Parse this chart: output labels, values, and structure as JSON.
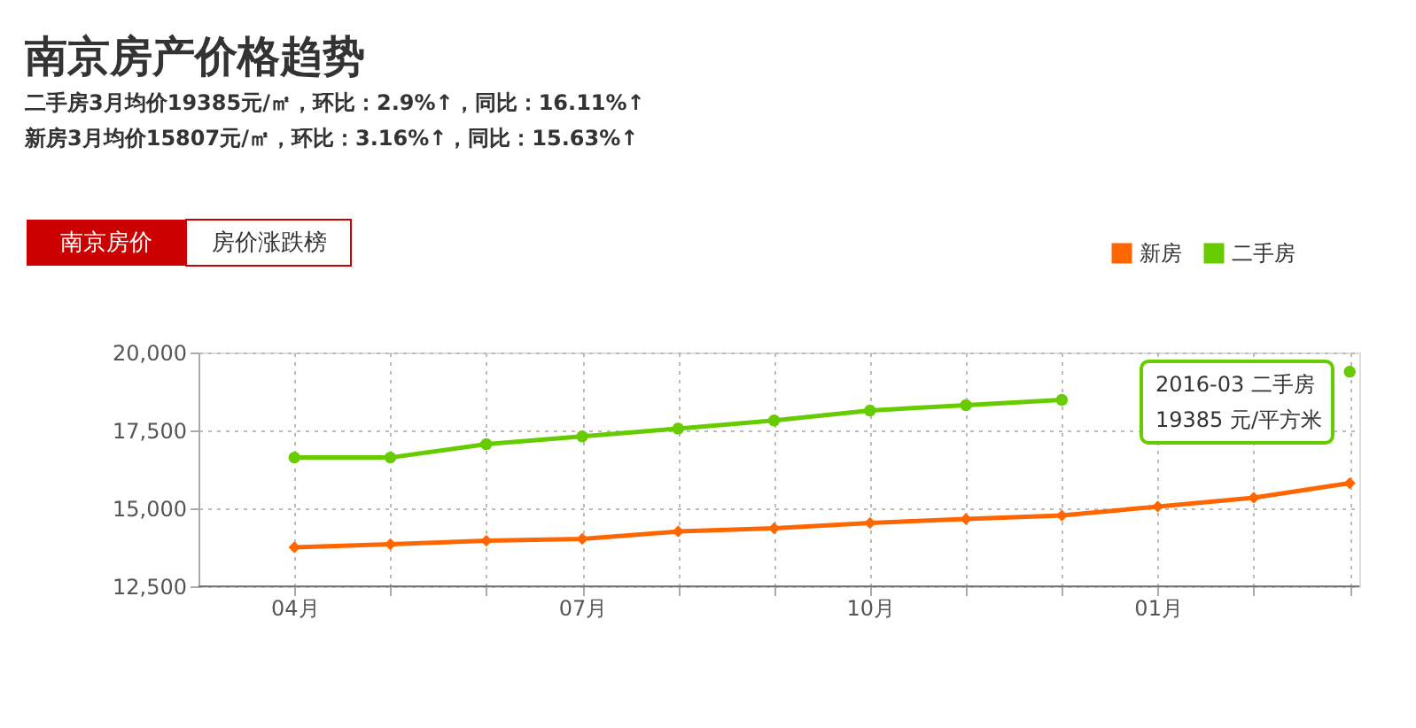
{
  "chart_data": {
    "type": "line",
    "title": "南京房产价格趋势",
    "subtitle": [
      "二手房3月均价19385元/㎡，环比：2.9%↑，同比：16.11%↑",
      "新房3月均价15807元/㎡，环比：3.16%↑，同比：15.63%↑"
    ],
    "annotations": [
      "南京房价",
      "房价涨跌榜",
      "2016-03 二手房",
      "19385 元/平方米"
    ],
    "categories": [
      "04月",
      null,
      null,
      "07月",
      null,
      null,
      "10月",
      null,
      null,
      "01月",
      null,
      null
    ],
    "series": [
      {
        "name": "新房",
        "color": "#ff6600",
        "marker": "diamond",
        "values": [
          13750,
          13850,
          13960,
          14020,
          14260,
          14360,
          14530,
          14660,
          14770,
          15060,
          15340,
          15807
        ]
      },
      {
        "name": "二手房",
        "color": "#66cc00",
        "marker": "circle",
        "values": [
          16630,
          16630,
          17060,
          17310,
          17560,
          17820,
          18140,
          18310,
          18480,
          null,
          null,
          19385
        ]
      }
    ],
    "ylim": [
      12500,
      20000
    ],
    "yticks": [
      {
        "value": 12500,
        "label": "12,500"
      },
      {
        "value": 15000,
        "label": "15,000"
      },
      {
        "value": 17500,
        "label": "17,500"
      },
      {
        "value": 20000,
        "label": "20,000"
      }
    ],
    "grid": true,
    "legend": "top right",
    "line_style": "solid"
  }
}
